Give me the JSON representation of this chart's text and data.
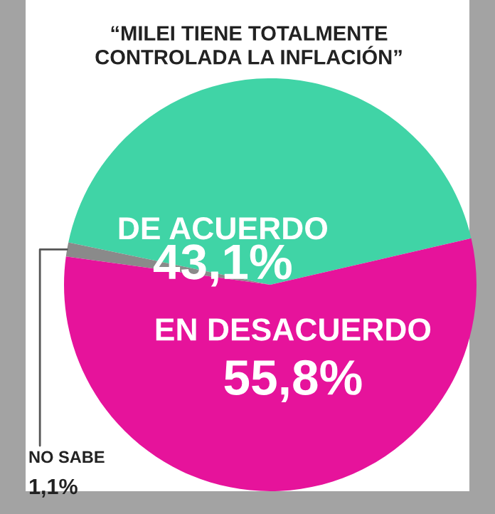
{
  "chart_data": {
    "type": "pie",
    "title": "“MILEI TIENE TOTALMENTE\nCONTROLADA LA INFLACIÓN”",
    "categories": [
      "DE ACUERDO",
      "NO SABE",
      "EN DESACUERDO"
    ],
    "values": [
      43.1,
      1.1,
      55.8
    ],
    "value_labels": [
      "43,1%",
      "1,1%",
      "55,8%"
    ],
    "colors": [
      "#40d4a6",
      "#8a8a8a",
      "#e6139b"
    ]
  }
}
